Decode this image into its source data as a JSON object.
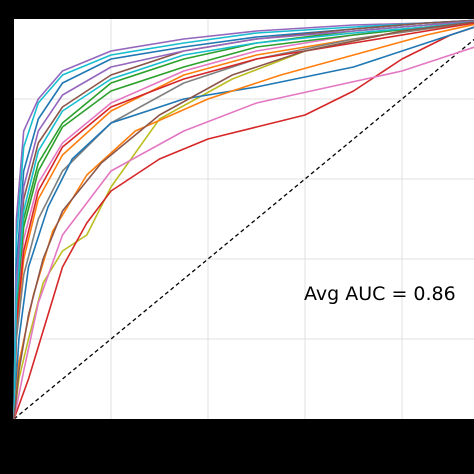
{
  "chart_data": {
    "type": "line",
    "title": "",
    "xlabel": "",
    "ylabel": "",
    "xlim": [
      0,
      1
    ],
    "ylim": [
      0,
      1
    ],
    "grid": true,
    "annotation": "Avg AUC = 0.86",
    "reference_line": {
      "x": [
        0,
        1
      ],
      "y": [
        0,
        1
      ],
      "style": "dashed"
    },
    "series": [
      {
        "color": "#9467bd",
        "x": [
          0,
          0.005,
          0.02,
          0.05,
          0.1,
          0.2,
          0.35,
          0.5,
          0.7,
          0.85,
          1
        ],
        "y": [
          0,
          0.5,
          0.72,
          0.8,
          0.87,
          0.92,
          0.95,
          0.97,
          0.985,
          0.99,
          1
        ]
      },
      {
        "color": "#17becf",
        "x": [
          0,
          0.005,
          0.02,
          0.05,
          0.1,
          0.2,
          0.35,
          0.5,
          0.7,
          0.85,
          1
        ],
        "y": [
          0,
          0.45,
          0.68,
          0.79,
          0.86,
          0.91,
          0.94,
          0.965,
          0.98,
          0.99,
          1
        ]
      },
      {
        "color": "#1f77b4",
        "x": [
          0,
          0.005,
          0.02,
          0.05,
          0.1,
          0.2,
          0.35,
          0.5,
          0.7,
          0.85,
          1
        ],
        "y": [
          0,
          0.38,
          0.62,
          0.75,
          0.84,
          0.9,
          0.93,
          0.955,
          0.975,
          0.99,
          1
        ]
      },
      {
        "color": "#8c564b",
        "x": [
          0,
          0.005,
          0.02,
          0.05,
          0.1,
          0.2,
          0.35,
          0.5,
          0.7,
          0.85,
          1
        ],
        "y": [
          0,
          0.33,
          0.55,
          0.69,
          0.78,
          0.86,
          0.92,
          0.95,
          0.975,
          0.99,
          1
        ]
      },
      {
        "color": "#2ca02c",
        "x": [
          0,
          0.005,
          0.02,
          0.05,
          0.1,
          0.2,
          0.35,
          0.5,
          0.7,
          0.85,
          1
        ],
        "y": [
          0,
          0.3,
          0.5,
          0.64,
          0.74,
          0.84,
          0.9,
          0.94,
          0.97,
          0.985,
          1
        ]
      },
      {
        "color": "#e377c2",
        "x": [
          0,
          0.005,
          0.02,
          0.05,
          0.1,
          0.2,
          0.35,
          0.5,
          0.7,
          0.85,
          1
        ],
        "y": [
          0,
          0.26,
          0.45,
          0.59,
          0.69,
          0.79,
          0.87,
          0.92,
          0.96,
          0.98,
          1
        ]
      },
      {
        "color": "#ff7f0e",
        "x": [
          0,
          0.005,
          0.02,
          0.05,
          0.1,
          0.2,
          0.35,
          0.5,
          0.7,
          0.85,
          1
        ],
        "y": [
          0,
          0.22,
          0.4,
          0.55,
          0.66,
          0.77,
          0.86,
          0.91,
          0.95,
          0.975,
          1
        ]
      },
      {
        "color": "#7f7f7f",
        "x": [
          0,
          0.005,
          0.02,
          0.05,
          0.1,
          0.2,
          0.35,
          0.5,
          0.7,
          0.85,
          1
        ],
        "y": [
          0,
          0.2,
          0.36,
          0.5,
          0.62,
          0.74,
          0.84,
          0.9,
          0.95,
          0.975,
          1
        ]
      },
      {
        "color": "#bcbd22",
        "x": [
          0,
          0.01,
          0.03,
          0.06,
          0.1,
          0.15,
          0.2,
          0.3,
          0.45,
          0.6,
          0.8,
          1
        ],
        "y": [
          0,
          0.1,
          0.2,
          0.34,
          0.42,
          0.46,
          0.58,
          0.75,
          0.85,
          0.92,
          0.97,
          1
        ]
      },
      {
        "color": "#d62728",
        "x": [
          0,
          0.03,
          0.06,
          0.1,
          0.15,
          0.2,
          0.3,
          0.4,
          0.5,
          0.6,
          0.7,
          0.8,
          0.9,
          1
        ],
        "y": [
          0,
          0.1,
          0.22,
          0.38,
          0.49,
          0.57,
          0.65,
          0.7,
          0.73,
          0.76,
          0.82,
          0.9,
          0.96,
          1
        ]
      },
      {
        "color": "#1f77b4",
        "x": [
          0,
          0.01,
          0.03,
          0.07,
          0.12,
          0.2,
          0.35,
          0.5,
          0.7,
          0.85,
          1
        ],
        "y": [
          0,
          0.2,
          0.38,
          0.53,
          0.65,
          0.74,
          0.8,
          0.83,
          0.88,
          0.94,
          1
        ]
      },
      {
        "color": "#e377c2",
        "x": [
          0,
          0.02,
          0.05,
          0.1,
          0.2,
          0.35,
          0.5,
          0.65,
          0.8,
          0.9,
          1
        ],
        "y": [
          0,
          0.12,
          0.29,
          0.46,
          0.62,
          0.72,
          0.79,
          0.83,
          0.87,
          0.91,
          0.95
        ]
      },
      {
        "color": "#2ca02c",
        "x": [
          0,
          0.005,
          0.02,
          0.05,
          0.1,
          0.2,
          0.35,
          0.5,
          0.7,
          0.85,
          1
        ],
        "y": [
          0,
          0.28,
          0.48,
          0.62,
          0.73,
          0.82,
          0.88,
          0.93,
          0.96,
          0.98,
          1
        ]
      },
      {
        "color": "#ff7f0e",
        "x": [
          0,
          0.01,
          0.04,
          0.08,
          0.15,
          0.25,
          0.4,
          0.55,
          0.7,
          0.85,
          1
        ],
        "y": [
          0,
          0.14,
          0.31,
          0.47,
          0.61,
          0.72,
          0.8,
          0.86,
          0.91,
          0.96,
          1
        ]
      },
      {
        "color": "#d62728",
        "x": [
          0,
          0.005,
          0.02,
          0.05,
          0.1,
          0.2,
          0.35,
          0.5,
          0.7,
          0.85,
          1
        ],
        "y": [
          0,
          0.24,
          0.42,
          0.57,
          0.68,
          0.78,
          0.85,
          0.9,
          0.94,
          0.97,
          1
        ]
      },
      {
        "color": "#9467bd",
        "x": [
          0,
          0.005,
          0.02,
          0.05,
          0.1,
          0.2,
          0.35,
          0.5,
          0.7,
          0.85,
          1
        ],
        "y": [
          0,
          0.35,
          0.58,
          0.72,
          0.81,
          0.88,
          0.92,
          0.95,
          0.97,
          0.985,
          1
        ]
      },
      {
        "color": "#17becf",
        "x": [
          0,
          0.005,
          0.02,
          0.05,
          0.1,
          0.2,
          0.35,
          0.5,
          0.7,
          0.85,
          1
        ],
        "y": [
          0,
          0.3,
          0.52,
          0.67,
          0.77,
          0.85,
          0.91,
          0.94,
          0.965,
          0.98,
          1
        ]
      },
      {
        "color": "#8c564b",
        "x": [
          0,
          0.01,
          0.03,
          0.06,
          0.1,
          0.18,
          0.3,
          0.45,
          0.6,
          0.8,
          1
        ],
        "y": [
          0,
          0.12,
          0.26,
          0.4,
          0.52,
          0.64,
          0.76,
          0.86,
          0.92,
          0.97,
          1
        ]
      }
    ]
  }
}
